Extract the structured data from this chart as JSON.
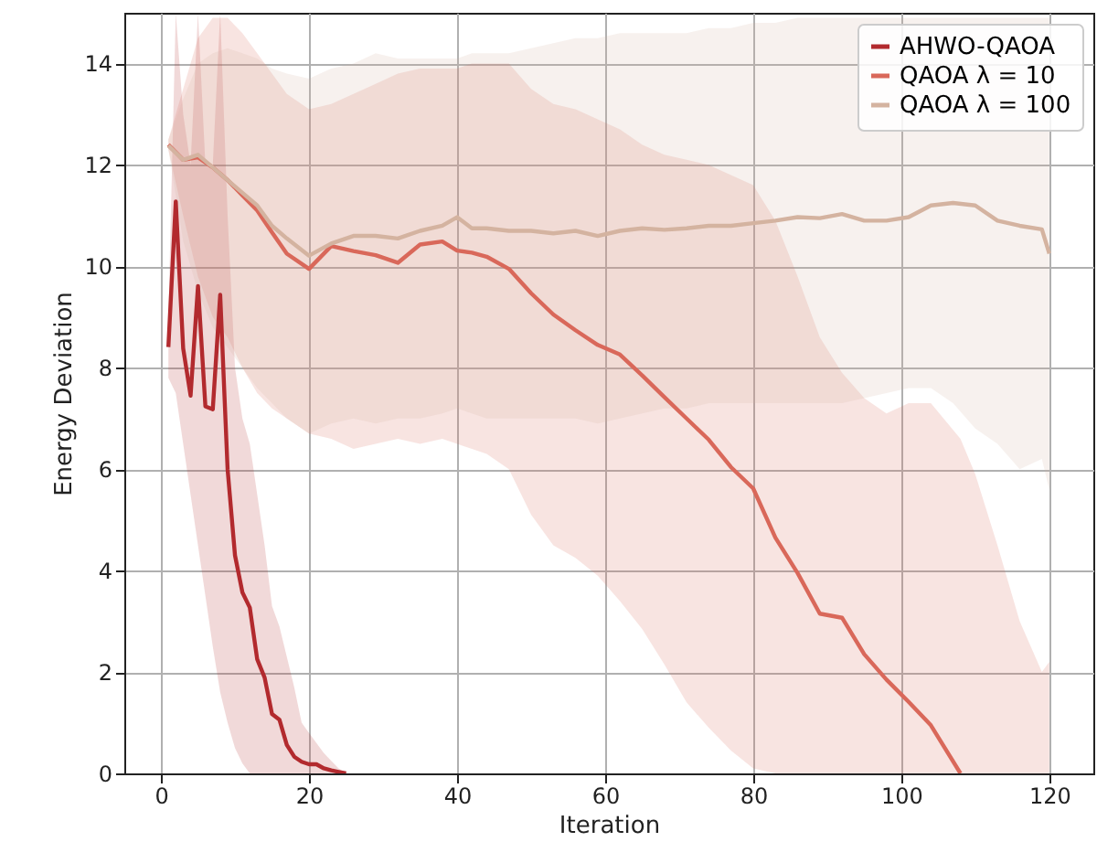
{
  "chart_data": {
    "type": "line",
    "xlabel": "Iteration",
    "ylabel": "Energy Deviation",
    "xlim": [
      -4.95,
      125.95
    ],
    "ylim": [
      0,
      15
    ],
    "xticks": [
      0,
      20,
      40,
      60,
      80,
      100,
      120
    ],
    "yticks": [
      0,
      2,
      4,
      6,
      8,
      10,
      12,
      14
    ],
    "grid": true,
    "legend": "top right",
    "series": [
      {
        "name": "AHWO-QAOA",
        "color": "#b22a2e",
        "x": [
          1,
          2,
          3,
          4,
          5,
          6,
          7,
          8,
          9,
          10,
          11,
          12,
          13,
          14,
          15,
          16,
          17,
          18,
          19,
          20,
          21,
          22,
          23,
          24,
          25
        ],
        "values": [
          8.41,
          11.28,
          8.38,
          7.45,
          9.61,
          7.24,
          7.18,
          9.44,
          6.0,
          4.3,
          3.57,
          3.27,
          2.25,
          1.89,
          1.17,
          1.06,
          0.56,
          0.33,
          0.23,
          0.18,
          0.18,
          0.1,
          0.06,
          0.03,
          0.0
        ],
        "lower": [
          7.8,
          7.5,
          6.5,
          5.5,
          4.5,
          3.5,
          2.5,
          1.6,
          1.0,
          0.5,
          0.2,
          0,
          0,
          0,
          0,
          0,
          0,
          0,
          0,
          0,
          0,
          0,
          0,
          0,
          0
        ],
        "upper": [
          9.0,
          15,
          13,
          12,
          15,
          12,
          12,
          15,
          11,
          8,
          7,
          6.5,
          5.5,
          4.5,
          3.3,
          2.9,
          2.3,
          1.7,
          1.0,
          0.8,
          0.6,
          0.4,
          0.25,
          0.1,
          0.0
        ]
      },
      {
        "name": "QAOA λ = 10",
        "color": "#d9685a",
        "x": [
          1,
          3,
          5,
          7,
          9,
          11,
          13,
          15,
          17,
          20,
          23,
          26,
          29,
          32,
          35,
          38,
          40,
          42,
          44,
          47,
          50,
          53,
          56,
          59,
          62,
          65,
          68,
          71,
          74,
          77,
          80,
          83,
          86,
          89,
          92,
          95,
          98,
          101,
          104,
          108,
          110,
          113,
          116,
          119,
          120
        ],
        "values": [
          12.4,
          12.1,
          12.15,
          11.95,
          11.7,
          11.4,
          11.1,
          10.67,
          10.25,
          9.95,
          10.4,
          10.3,
          10.22,
          10.07,
          10.43,
          10.49,
          10.31,
          10.27,
          10.19,
          9.95,
          9.47,
          9.05,
          8.74,
          8.45,
          8.26,
          7.85,
          7.42,
          7.0,
          6.58,
          6.04,
          5.62,
          4.65,
          3.95,
          3.15,
          3.07,
          2.35,
          1.85,
          1.41,
          0.95,
          0.0,
          null,
          null,
          null,
          null,
          null
        ],
        "lower": [
          12.3,
          11.0,
          9.8,
          9.0,
          8.6,
          8.0,
          7.5,
          7.2,
          7.0,
          6.7,
          6.6,
          6.4,
          6.5,
          6.6,
          6.5,
          6.6,
          6.5,
          6.4,
          6.3,
          6.0,
          5.1,
          4.5,
          4.25,
          3.9,
          3.4,
          2.85,
          2.15,
          1.4,
          0.9,
          0.45,
          0.1,
          0,
          0,
          0,
          0,
          0,
          0,
          0,
          0,
          0,
          0,
          0,
          0,
          0,
          0
        ],
        "upper": [
          12.5,
          13.5,
          14.5,
          14.9,
          14.9,
          14.6,
          14.2,
          13.8,
          13.4,
          13.1,
          13.2,
          13.4,
          13.6,
          13.8,
          13.9,
          13.9,
          13.9,
          14.0,
          14.0,
          14.0,
          13.5,
          13.2,
          13.1,
          12.9,
          12.7,
          12.4,
          12.2,
          12.1,
          12.0,
          11.8,
          11.6,
          10.9,
          9.8,
          8.6,
          7.9,
          7.4,
          7.1,
          7.3,
          7.3,
          6.6,
          5.9,
          4.5,
          3.0,
          2.0,
          2.2
        ]
      },
      {
        "name": "QAOA λ = 100",
        "color": "#d4b3a0",
        "x": [
          1,
          3,
          5,
          7,
          9,
          11,
          13,
          15,
          17,
          20,
          23,
          26,
          29,
          32,
          35,
          38,
          40,
          42,
          44,
          47,
          50,
          53,
          56,
          59,
          62,
          65,
          68,
          71,
          74,
          77,
          80,
          83,
          86,
          89,
          92,
          95,
          98,
          101,
          104,
          107,
          110,
          113,
          116,
          119,
          120
        ],
        "values": [
          12.38,
          12.1,
          12.2,
          11.95,
          11.7,
          11.45,
          11.2,
          10.8,
          10.55,
          10.21,
          10.45,
          10.6,
          10.6,
          10.55,
          10.7,
          10.8,
          10.97,
          10.75,
          10.75,
          10.7,
          10.7,
          10.65,
          10.7,
          10.6,
          10.7,
          10.75,
          10.72,
          10.75,
          10.8,
          10.8,
          10.85,
          10.9,
          10.97,
          10.95,
          11.03,
          10.9,
          10.9,
          10.97,
          11.2,
          11.25,
          11.2,
          10.9,
          10.8,
          10.73,
          10.25
        ],
        "lower": [
          12.3,
          10.5,
          9.5,
          8.8,
          8.4,
          8.0,
          7.6,
          7.3,
          7.0,
          6.7,
          6.9,
          7.0,
          6.9,
          7.0,
          7.0,
          7.1,
          7.2,
          7.1,
          7.0,
          7.0,
          7.0,
          7.0,
          7.0,
          6.9,
          7.0,
          7.1,
          7.2,
          7.2,
          7.3,
          7.3,
          7.3,
          7.3,
          7.3,
          7.3,
          7.3,
          7.4,
          7.5,
          7.6,
          7.6,
          7.3,
          6.8,
          6.5,
          6.0,
          6.2,
          5.6
        ],
        "upper": [
          12.5,
          13.3,
          14.0,
          14.2,
          14.3,
          14.2,
          14.1,
          13.9,
          13.8,
          13.7,
          13.9,
          14.0,
          14.2,
          14.1,
          14.1,
          14.1,
          14.1,
          14.2,
          14.2,
          14.2,
          14.3,
          14.4,
          14.5,
          14.5,
          14.6,
          14.6,
          14.6,
          14.6,
          14.7,
          14.7,
          14.8,
          14.8,
          14.9,
          14.9,
          14.9,
          14.9,
          14.9,
          14.9,
          14.9,
          14.9,
          14.9,
          14.9,
          14.9,
          14.9,
          14.9
        ]
      }
    ]
  }
}
